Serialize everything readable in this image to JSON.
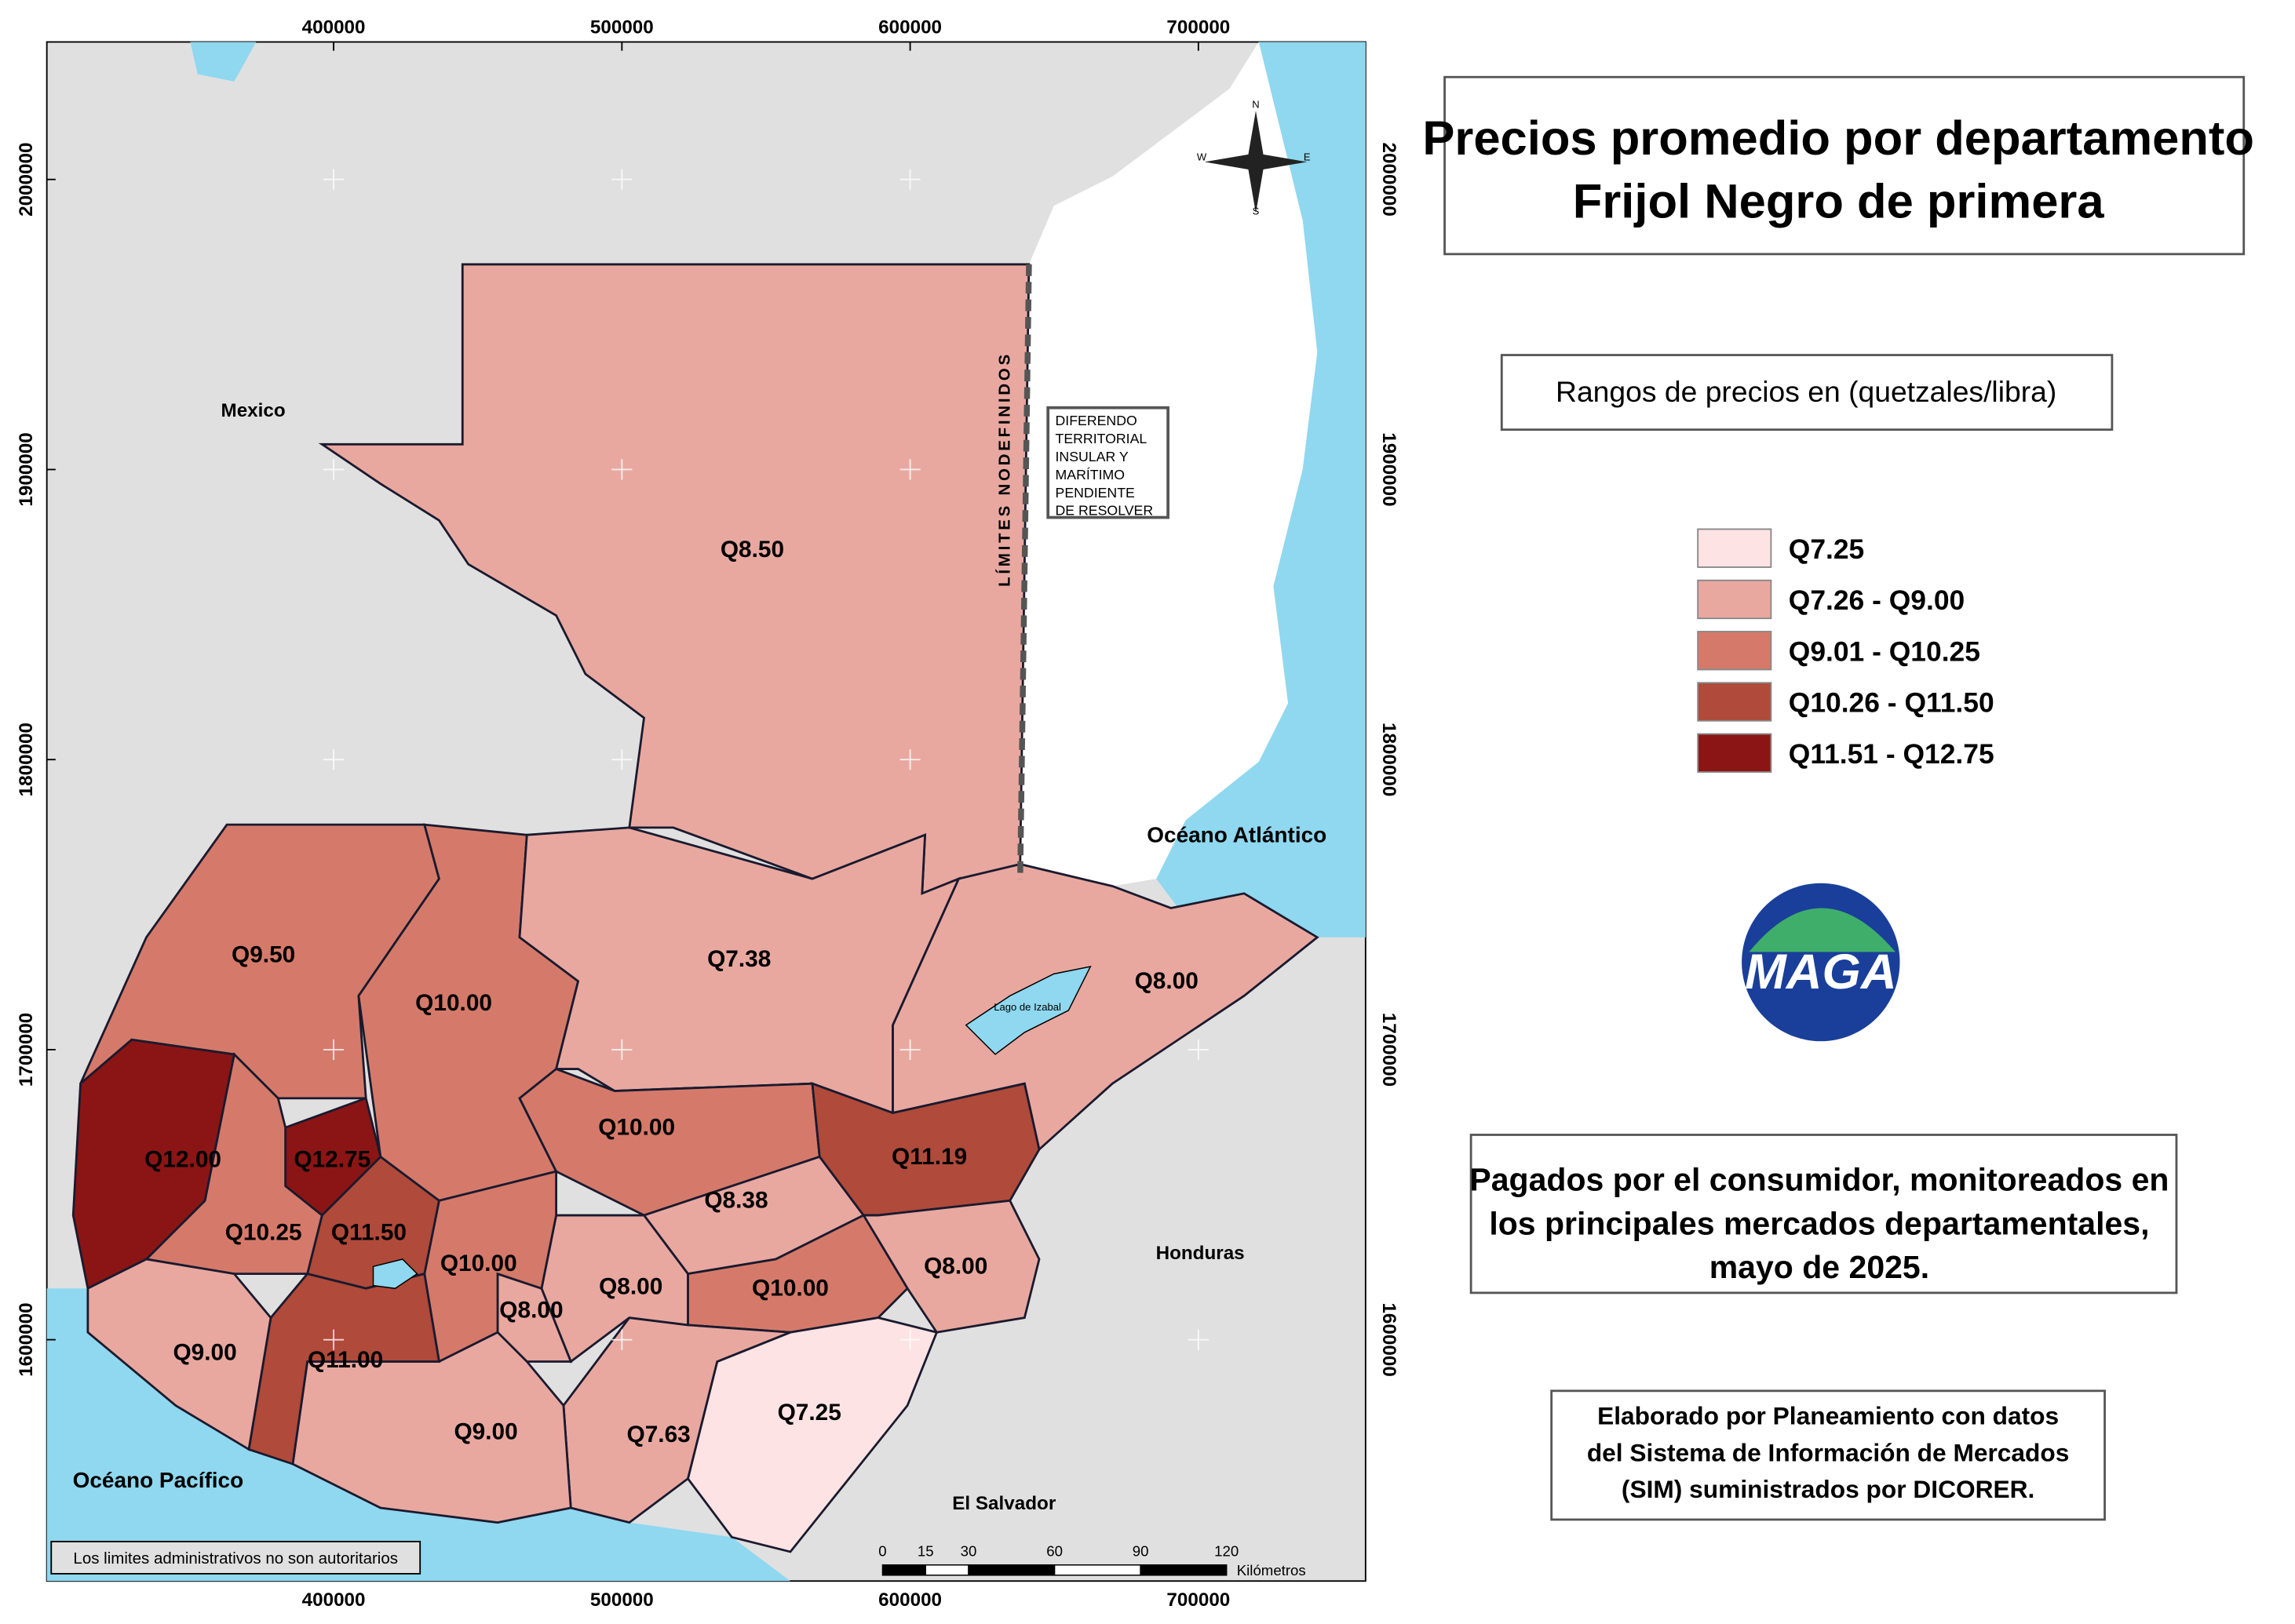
{
  "title": [
    "Precios promedio por departamento",
    "Frijol Negro de primera"
  ],
  "legend": {
    "title": "Rangos de precios en (quetzales/libra)",
    "items": [
      {
        "label": "Q7.25",
        "color": "#fde3e3"
      },
      {
        "label": "Q7.26 - Q9.00",
        "color": "#e8a8a0"
      },
      {
        "label": "Q9.01 - Q10.25",
        "color": "#d57a6a"
      },
      {
        "label": "Q10.26 - Q11.50",
        "color": "#b04a3a"
      },
      {
        "label": "Q11.51 - Q12.75",
        "color": "#8b1515"
      }
    ]
  },
  "departments": [
    {
      "label": "Q8.50",
      "color": "#e8a8a0"
    },
    {
      "label": "Q9.50",
      "color": "#d57a6a"
    },
    {
      "label": "Q10.00",
      "color": "#d57a6a"
    },
    {
      "label": "Q7.38",
      "color": "#e8a8a0"
    },
    {
      "label": "Q8.00",
      "color": "#e8a8a0"
    },
    {
      "label": "Q10.00",
      "color": "#d57a6a"
    },
    {
      "label": "Q8.38",
      "color": "#e8a8a0"
    },
    {
      "label": "Q11.19",
      "color": "#b04a3a"
    },
    {
      "label": "Q8.00",
      "color": "#e8a8a0"
    },
    {
      "label": "Q10.00",
      "color": "#d57a6a"
    },
    {
      "label": "Q7.25",
      "color": "#fde3e3"
    },
    {
      "label": "Q7.63",
      "color": "#e8a8a0"
    },
    {
      "label": "Q8.00",
      "color": "#e8a8a0"
    },
    {
      "label": "Q8.00",
      "color": "#e8a8a0"
    },
    {
      "label": "Q10.00",
      "color": "#d57a6a"
    },
    {
      "label": "Q9.00",
      "color": "#e8a8a0"
    },
    {
      "label": "Q11.50",
      "color": "#b04a3a"
    },
    {
      "label": "Q12.75",
      "color": "#8b1515"
    },
    {
      "label": "Q10.25",
      "color": "#d57a6a"
    },
    {
      "label": "Q12.00",
      "color": "#8b1515"
    },
    {
      "label": "Q11.00",
      "color": "#b04a3a"
    },
    {
      "label": "Q9.00",
      "color": "#e8a8a0"
    }
  ],
  "places": [
    "Mexico",
    "Océano Atlántico",
    "Honduras",
    "El Salvador",
    "Océano Pacífico",
    "Lago de Izabal"
  ],
  "border_note": "LÍMITES NODEFINIDOS",
  "dispute_note": [
    "DIFERENDO",
    "TERRITORIAL",
    "INSULAR Y",
    "MARÍTIMO",
    "PENDIENTE",
    "DE RESOLVER"
  ],
  "disclaimer": "Los limites administrativos no son autoritarios",
  "info": [
    "Pagados por el consumidor, monitoreados en",
    "los principales mercados departamentales,",
    "mayo de 2025."
  ],
  "credits": [
    "Elaborado por Planeamiento con datos",
    "del Sistema de Información de Mercados",
    "(SIM) suministrados por DICORER."
  ],
  "logo": "MAGA",
  "compass": [
    "N",
    "S",
    "E",
    "W"
  ],
  "scalebar": {
    "ticks": [
      0,
      15,
      30,
      60,
      90,
      120
    ],
    "unit": "Kilómetros"
  },
  "xlim": [
    300500,
    758000
  ],
  "xticks": [
    400000,
    500000,
    600000,
    700000
  ],
  "ylim": [
    1516800,
    2047400
  ],
  "yticks": [
    1600000,
    1700000,
    1800000,
    1900000,
    2000000
  ]
}
